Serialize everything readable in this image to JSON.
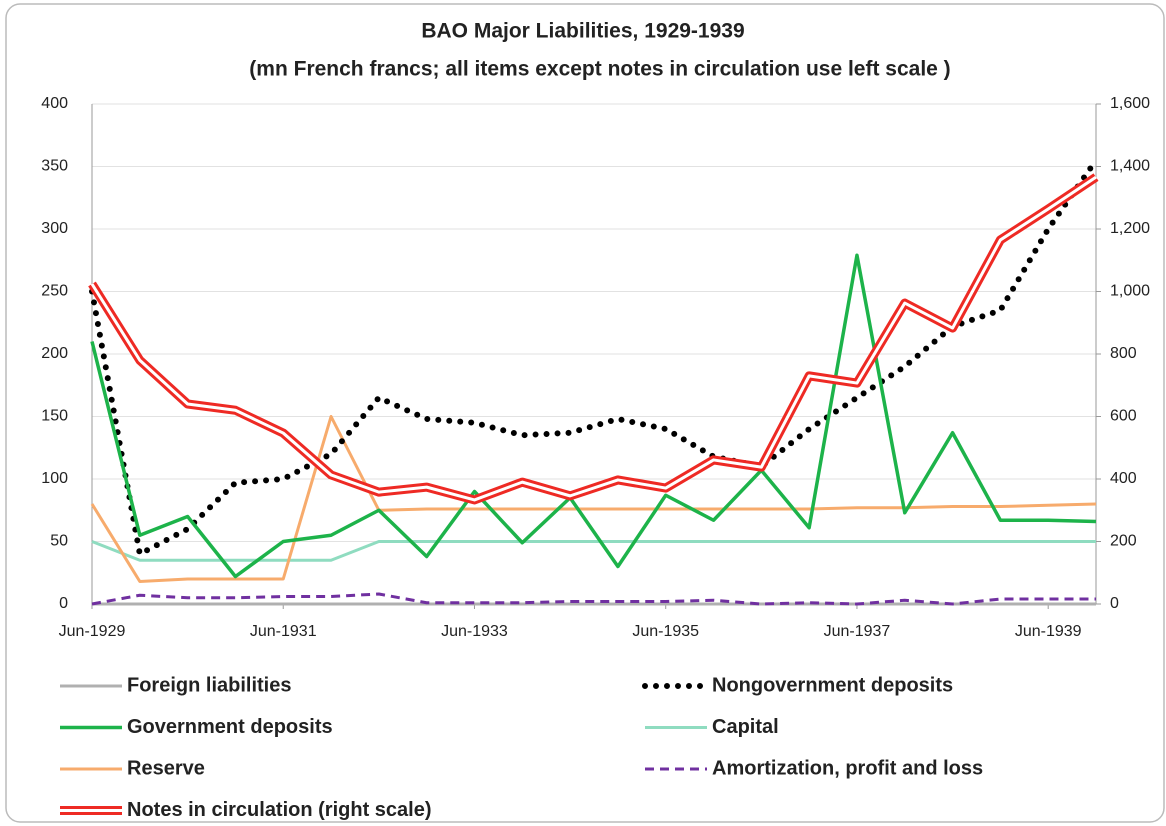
{
  "chart_data": {
    "type": "line",
    "title": "BAO Major Liabilities, 1929-1939",
    "subtitle": "(mn French francs; all items except notes in circulation use left scale )",
    "categories": [
      "Jun-1929",
      null,
      null,
      null,
      "Jun-1931",
      null,
      null,
      null,
      "Jun-1933",
      null,
      null,
      null,
      "Jun-1935",
      null,
      null,
      null,
      "Jun-1937",
      null,
      null,
      null,
      "Jun-1939",
      null
    ],
    "ylim": [
      0,
      400
    ],
    "yticks": [
      0,
      50,
      100,
      150,
      200,
      250,
      300,
      350,
      400
    ],
    "y2lim": [
      0,
      1600
    ],
    "y2ticks": [
      0,
      200,
      400,
      600,
      800,
      {
        "value": 1000,
        "label": "1,000"
      },
      {
        "value": 1200,
        "label": "1,200"
      },
      {
        "value": 1400,
        "label": "1,400"
      },
      {
        "value": 1600,
        "label": "1,600"
      }
    ],
    "grid": true,
    "series": [
      {
        "name": "Foreign liabilities",
        "color": "#b0b0b0",
        "style": "solid",
        "values": [
          0,
          0,
          0,
          0,
          0,
          0,
          0,
          0,
          0,
          0,
          0,
          0,
          0,
          0,
          0,
          0,
          0,
          0,
          0,
          0,
          0,
          0
        ]
      },
      {
        "name": "Nongovernment deposits",
        "color": "#000000",
        "style": "dotted",
        "values": [
          250,
          40,
          60,
          97,
          100,
          120,
          165,
          148,
          145,
          135,
          137,
          148,
          140,
          118,
          110,
          140,
          165,
          190,
          222,
          235,
          300,
          355
        ]
      },
      {
        "name": "Government deposits",
        "color": "#1db34a",
        "style": "solid",
        "values": [
          210,
          55,
          70,
          22,
          50,
          55,
          75,
          38,
          90,
          49,
          85,
          30,
          87,
          67,
          107,
          61,
          279,
          73,
          137,
          67,
          67,
          66
        ]
      },
      {
        "name": "Capital",
        "color": "#8fdcc0",
        "style": "solid",
        "values": [
          50,
          35,
          35,
          35,
          35,
          35,
          50,
          50,
          50,
          50,
          50,
          50,
          50,
          50,
          50,
          50,
          50,
          50,
          50,
          50,
          50,
          50
        ]
      },
      {
        "name": "Reserve",
        "color": "#f7ab6c",
        "style": "solid",
        "values": [
          80,
          18,
          20,
          20,
          20,
          150,
          75,
          76,
          76,
          76,
          76,
          76,
          76,
          76,
          76,
          76,
          77,
          77,
          78,
          78,
          79,
          80
        ]
      },
      {
        "name": "Amortization, profit and loss",
        "color": "#7030a0",
        "style": "dashed",
        "values": [
          0,
          7,
          5,
          5,
          6,
          6,
          8,
          1,
          1,
          1,
          2,
          2,
          2,
          3,
          0,
          1,
          0,
          3,
          0,
          4,
          4,
          4
        ]
      },
      {
        "name": "Notes in circulation (right scale)",
        "color": "#ee2a24",
        "style": "double",
        "axis": "y2",
        "values": [
          1024,
          780,
          640,
          620,
          547,
          413,
          358,
          374,
          333,
          390,
          346,
          397,
          371,
          461,
          438,
          730,
          707,
          963,
          883,
          1165,
          1264,
          1366
        ]
      }
    ]
  }
}
